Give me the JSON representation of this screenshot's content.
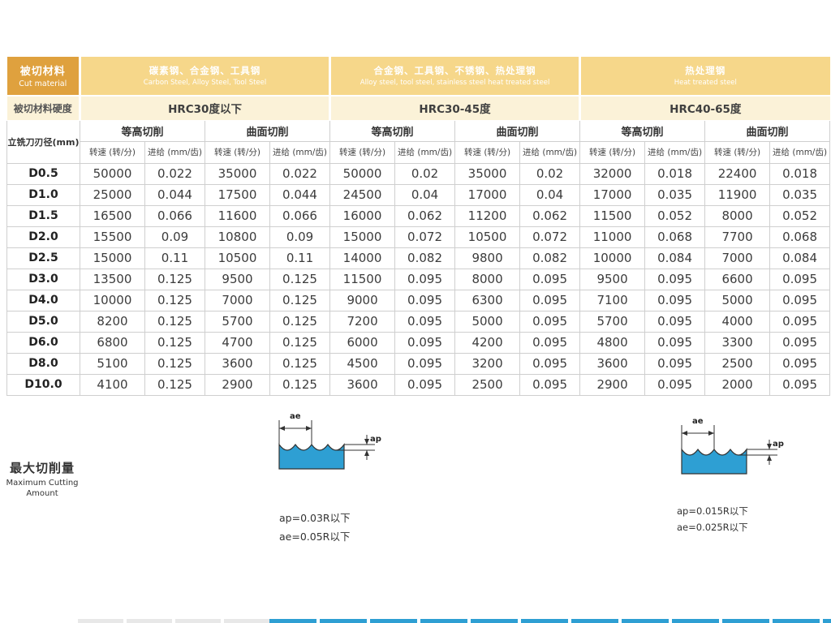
{
  "colors": {
    "header_gold": "#DFA13E",
    "header_light_gold": "#F6D78A",
    "hardness_cream": "#FBF2D8",
    "diagram_blue": "#2E9FD3",
    "cell_border": "#CFCFCF"
  },
  "header": {
    "cut_material_zh": "被切材料",
    "cut_material_en": "Cut material",
    "groups": [
      {
        "zh": "碳素钢、合金钢、工具钢",
        "en": "Carbon Steel, Alloy Steel, Tool Steel",
        "hardness": "HRC30度以下"
      },
      {
        "zh": "合金钢、工具钢、不锈钢、热处理钢",
        "en": "Alloy steel, tool steel, stainless steel heat treated steel",
        "hardness": "HRC30-45度"
      },
      {
        "zh": "热处理钢",
        "en": "Heat treated steel",
        "hardness": "HRC40-65度"
      }
    ],
    "hardness_label": "被切材料硬度",
    "diameter_label": "立铣刀刃径(mm)",
    "contour_label": "等高切削",
    "surface_label": "曲面切削",
    "speed_label": "转速 (转/分)",
    "feed_label": "进给 (mm/齿)"
  },
  "table_rows": [
    {
      "d": "D0.5",
      "v": [
        "50000",
        "0.022",
        "35000",
        "0.022",
        "50000",
        "0.02",
        "35000",
        "0.02",
        "32000",
        "0.018",
        "22400",
        "0.018"
      ]
    },
    {
      "d": "D1.0",
      "v": [
        "25000",
        "0.044",
        "17500",
        "0.044",
        "24500",
        "0.04",
        "17000",
        "0.04",
        "17000",
        "0.035",
        "11900",
        "0.035"
      ]
    },
    {
      "d": "D1.5",
      "v": [
        "16500",
        "0.066",
        "11600",
        "0.066",
        "16000",
        "0.062",
        "11200",
        "0.062",
        "11500",
        "0.052",
        "8000",
        "0.052"
      ]
    },
    {
      "d": "D2.0",
      "v": [
        "15500",
        "0.09",
        "10800",
        "0.09",
        "15000",
        "0.072",
        "10500",
        "0.072",
        "11000",
        "0.068",
        "7700",
        "0.068"
      ]
    },
    {
      "d": "D2.5",
      "v": [
        "15000",
        "0.11",
        "10500",
        "0.11",
        "14000",
        "0.082",
        "9800",
        "0.082",
        "10000",
        "0.084",
        "7000",
        "0.084"
      ]
    },
    {
      "d": "D3.0",
      "v": [
        "13500",
        "0.125",
        "9500",
        "0.125",
        "11500",
        "0.095",
        "8000",
        "0.095",
        "9500",
        "0.095",
        "6600",
        "0.095"
      ]
    },
    {
      "d": "D4.0",
      "v": [
        "10000",
        "0.125",
        "7000",
        "0.125",
        "9000",
        "0.095",
        "6300",
        "0.095",
        "7100",
        "0.095",
        "5000",
        "0.095"
      ]
    },
    {
      "d": "D5.0",
      "v": [
        "8200",
        "0.125",
        "5700",
        "0.125",
        "7200",
        "0.095",
        "5000",
        "0.095",
        "5700",
        "0.095",
        "4000",
        "0.095"
      ]
    },
    {
      "d": "D6.0",
      "v": [
        "6800",
        "0.125",
        "4700",
        "0.125",
        "6000",
        "0.095",
        "4200",
        "0.095",
        "4800",
        "0.095",
        "3300",
        "0.095"
      ]
    },
    {
      "d": "D8.0",
      "v": [
        "5100",
        "0.125",
        "3600",
        "0.125",
        "4500",
        "0.095",
        "3200",
        "0.095",
        "3600",
        "0.095",
        "2500",
        "0.095"
      ]
    },
    {
      "d": "D10.0",
      "v": [
        "4100",
        "0.125",
        "2900",
        "0.125",
        "3600",
        "0.095",
        "2500",
        "0.095",
        "2900",
        "0.095",
        "2000",
        "0.095"
      ]
    }
  ],
  "footer": {
    "label_zh": "最大切削量",
    "label_en": "Maximum Cutting",
    "label_en2": "Amount",
    "diagram_ae": "ae",
    "diagram_ap": "ap",
    "limits": [
      {
        "ap": "ap=0.03R以下",
        "ae": "ae=0.05R以下"
      },
      {
        "ap": "ap=0.015R以下",
        "ae": "ae=0.025R以下"
      }
    ]
  }
}
